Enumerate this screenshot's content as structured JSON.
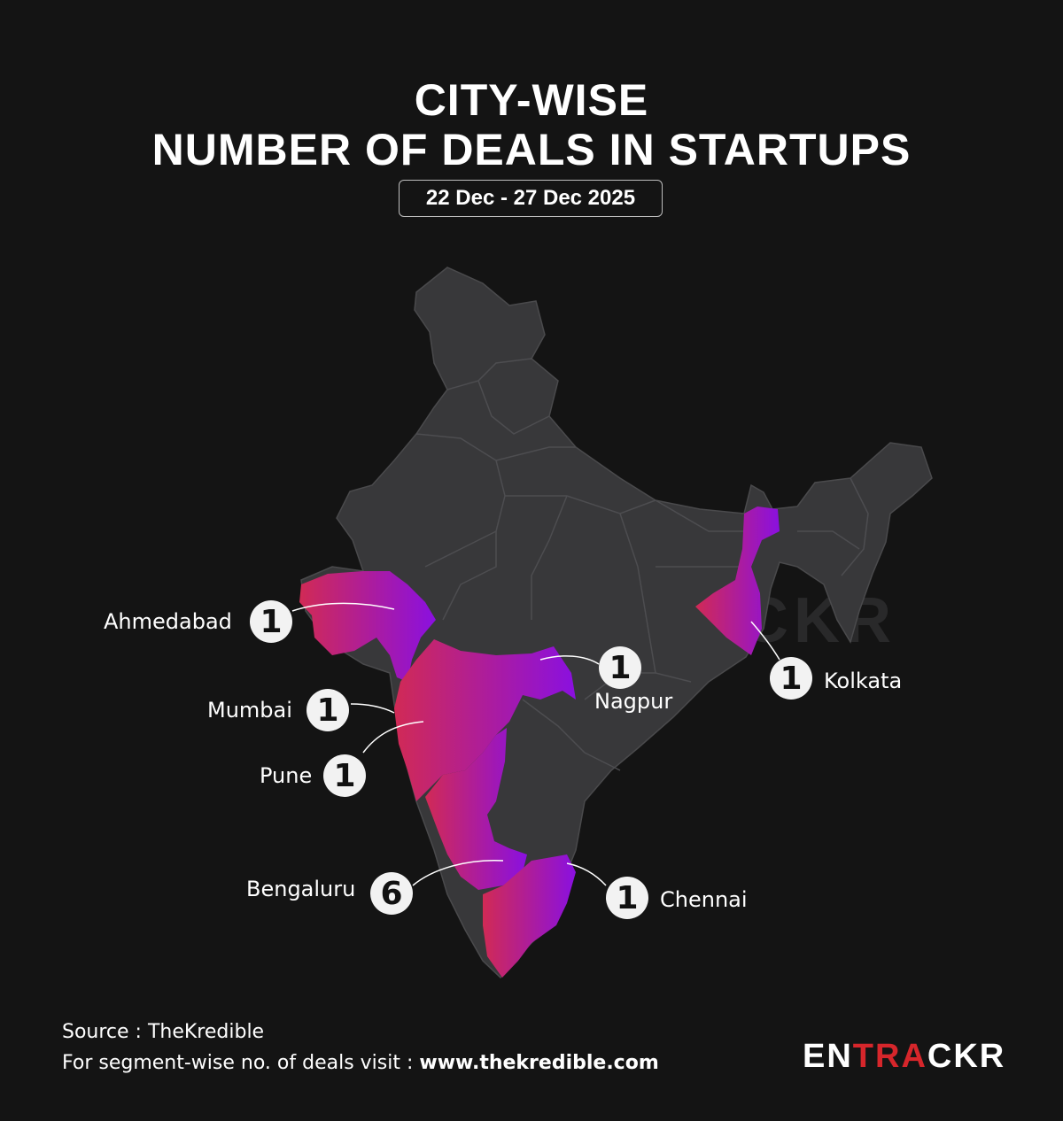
{
  "header": {
    "title_line1": "CITY-WISE",
    "title_line2": "NUMBER OF DEALS IN STARTUPS",
    "date_range": "22 Dec - 27 Dec 2025"
  },
  "cities": [
    {
      "name": "Ahmedabad",
      "deals": "1"
    },
    {
      "name": "Mumbai",
      "deals": "1"
    },
    {
      "name": "Pune",
      "deals": "1"
    },
    {
      "name": "Bengaluru",
      "deals": "6"
    },
    {
      "name": "Nagpur",
      "deals": "1"
    },
    {
      "name": "Kolkata",
      "deals": "1"
    },
    {
      "name": "Chennai",
      "deals": "1"
    }
  ],
  "footer": {
    "source": "Source : TheKredible",
    "visit_prefix": "For segment-wise no. of deals visit : ",
    "visit_url": "www.thekredible.com"
  },
  "brand": {
    "logo_white": "EN",
    "logo_red": "TRA",
    "logo_white2": "CKR",
    "watermark": "ENTRACKR"
  },
  "colors": {
    "background": "#141414",
    "map_base": "#38383a",
    "highlight_start": "#d12a55",
    "highlight_end": "#8a10e0",
    "brand_red": "#d6262b"
  }
}
